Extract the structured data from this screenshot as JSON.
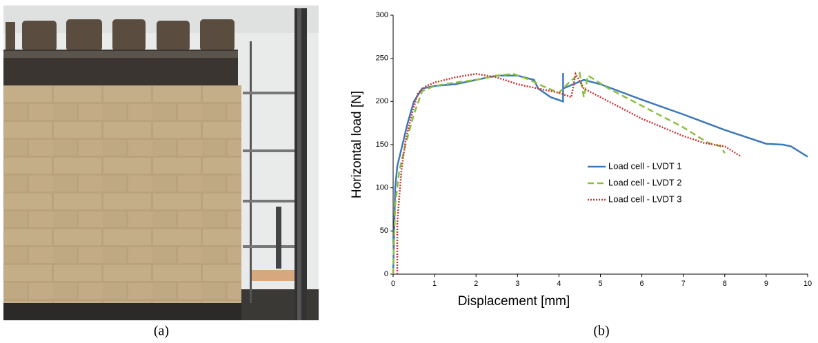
{
  "chart_data": {
    "type": "line",
    "xlabel": "Displacement [mm]",
    "ylabel": "Horizontal load [N]",
    "xlim": [
      0,
      10
    ],
    "xticks": [
      0,
      1,
      2,
      3,
      4,
      5,
      6,
      7,
      8,
      9,
      10
    ],
    "ylim": [
      0,
      300
    ],
    "yticks": [
      0,
      50,
      100,
      150,
      200,
      250,
      300
    ],
    "grid": false,
    "legend": "center",
    "series": [
      {
        "name": "Load cell - LVDT 1",
        "color": "#3d78b8",
        "dash": "solid",
        "x": [
          0,
          0.05,
          0.1,
          0.2,
          0.35,
          0.5,
          0.7,
          1,
          1.5,
          2,
          2.5,
          3,
          3.4,
          3.5,
          3.8,
          4.1,
          4.1,
          4.1,
          4.6,
          5,
          6,
          7,
          8,
          9,
          9.4,
          9.6,
          10
        ],
        "values": [
          0,
          100,
          125,
          145,
          175,
          200,
          215,
          218,
          220,
          225,
          230,
          230,
          225,
          215,
          205,
          200,
          233,
          215,
          225,
          220,
          202,
          185,
          167,
          151,
          150,
          148,
          136
        ]
      },
      {
        "name": "Load cell - LVDT 2",
        "color": "#8cbf3f",
        "dash": "dashed",
        "x": [
          0,
          0.05,
          0.15,
          0.3,
          0.5,
          0.7,
          1,
          1.5,
          2,
          2.5,
          2.9,
          3.3,
          3.6,
          4,
          4.2,
          4.5,
          4.6,
          4.7,
          5.2,
          6,
          7,
          7.6,
          7.9,
          8
        ],
        "values": [
          0,
          80,
          120,
          150,
          185,
          212,
          218,
          222,
          225,
          230,
          232,
          225,
          218,
          210,
          220,
          233,
          205,
          230,
          215,
          195,
          170,
          152,
          148,
          140
        ]
      },
      {
        "name": "Load cell - LVDT 3",
        "color": "#cc3333",
        "dash": "dotted",
        "x": [
          0.1,
          0.1,
          0.2,
          0.3,
          0.45,
          0.6,
          0.8,
          1,
          1.5,
          2,
          2.5,
          3,
          3.5,
          4,
          4.3,
          4.4,
          4.6,
          5,
          6,
          7,
          7.5,
          8,
          8.4
        ],
        "values": [
          0,
          60,
          120,
          155,
          185,
          210,
          218,
          222,
          228,
          232,
          228,
          220,
          215,
          210,
          205,
          232,
          215,
          205,
          180,
          160,
          152,
          148,
          136
        ]
      }
    ]
  },
  "captions": [
    "(a)",
    "(b)"
  ]
}
